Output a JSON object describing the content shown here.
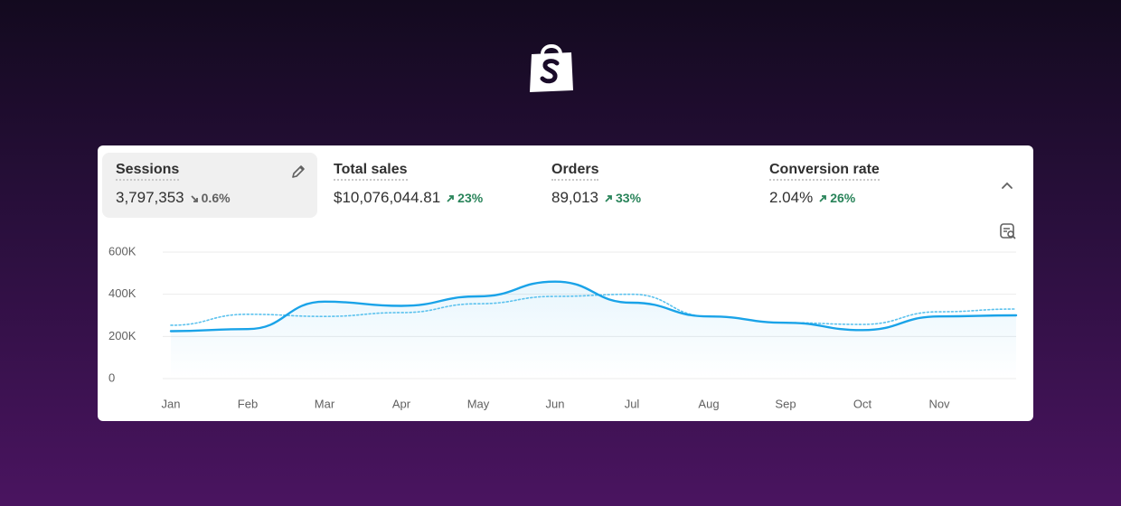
{
  "metrics": [
    {
      "label": "Sessions",
      "value": "3,797,353",
      "change": "0.6%",
      "trend": "down",
      "selected": true
    },
    {
      "label": "Total sales",
      "value": "$10,076,044.81",
      "change": "23%",
      "trend": "up",
      "selected": false
    },
    {
      "label": "Orders",
      "value": "89,013",
      "change": "33%",
      "trend": "up",
      "selected": false
    },
    {
      "label": "Conversion rate",
      "value": "2.04%",
      "change": "26%",
      "trend": "up",
      "selected": false
    }
  ],
  "chart_data": {
    "type": "line",
    "categories": [
      "Jan",
      "Feb",
      "Mar",
      "Apr",
      "May",
      "Jun",
      "Jul",
      "Aug",
      "Sep",
      "Oct",
      "Nov",
      null
    ],
    "series": [
      {
        "color": "#1aa3e8",
        "style": "solid",
        "values": [
          225000,
          235000,
          365000,
          345000,
          390000,
          460000,
          360000,
          295000,
          265000,
          230000,
          295000,
          300000
        ]
      },
      {
        "color": "#5cc2ee",
        "style": "dotted",
        "values": [
          253000,
          305000,
          295000,
          313000,
          355000,
          390000,
          400000,
          295000,
          265000,
          257000,
          317000,
          330000
        ]
      }
    ],
    "ylim": [
      0,
      600000
    ],
    "yticks": [
      {
        "value": 0,
        "label": "0"
      },
      {
        "value": 200000,
        "label": "200K"
      },
      {
        "value": 400000,
        "label": "400K"
      },
      {
        "value": 600000,
        "label": "600K"
      }
    ],
    "grid": true
  }
}
